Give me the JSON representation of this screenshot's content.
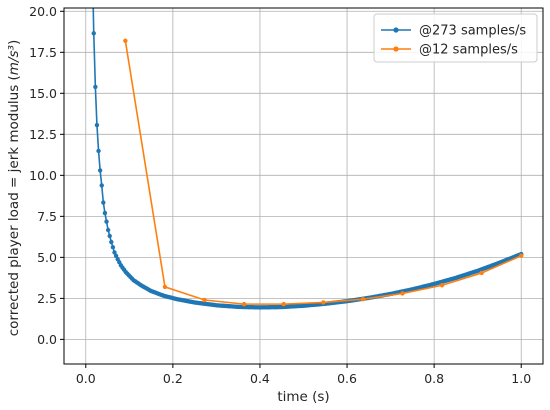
{
  "chart_data": {
    "type": "line",
    "xlabel": "time (s)",
    "ylabel": "corrected player load = jerk modulus (m/s³)",
    "xlim": [
      -0.05,
      1.05
    ],
    "ylim": [
      -1.5,
      20.2
    ],
    "grid": true,
    "legend_position": "top-right",
    "x_ticks": [
      "0.0",
      "0.2",
      "0.4",
      "0.6",
      "0.8",
      "1.0"
    ],
    "y_ticks": [
      "0.0",
      "2.5",
      "5.0",
      "7.5",
      "10.0",
      "12.5",
      "15.0",
      "17.5",
      "20.0"
    ],
    "series": [
      {
        "name": "@273 samples/s",
        "color": "#1f77b4",
        "x_start": 0.0037,
        "x_end": 1.0,
        "n_points": 273,
        "values": [
          [
            0.0183,
            18.7
          ],
          [
            0.022,
            15.4
          ],
          [
            0.0256,
            13.1
          ],
          [
            0.0293,
            11.5
          ],
          [
            0.033,
            10.3
          ],
          [
            0.037,
            9.3
          ],
          [
            0.04,
            8.4
          ],
          [
            0.044,
            7.7
          ],
          [
            0.051,
            6.7
          ],
          [
            0.059,
            5.9
          ],
          [
            0.066,
            5.3
          ],
          [
            0.073,
            4.9
          ],
          [
            0.081,
            4.5
          ],
          [
            0.092,
            4.1
          ],
          [
            0.11,
            3.6
          ],
          [
            0.13,
            3.25
          ],
          [
            0.15,
            2.95
          ],
          [
            0.18,
            2.65
          ],
          [
            0.21,
            2.45
          ],
          [
            0.25,
            2.25
          ],
          [
            0.3,
            2.08
          ],
          [
            0.35,
            1.98
          ],
          [
            0.4,
            1.95
          ],
          [
            0.45,
            1.97
          ],
          [
            0.5,
            2.05
          ],
          [
            0.55,
            2.17
          ],
          [
            0.6,
            2.33
          ],
          [
            0.65,
            2.53
          ],
          [
            0.7,
            2.77
          ],
          [
            0.75,
            3.05
          ],
          [
            0.8,
            3.38
          ],
          [
            0.85,
            3.75
          ],
          [
            0.9,
            4.18
          ],
          [
            0.95,
            4.67
          ],
          [
            1.0,
            5.2
          ]
        ]
      },
      {
        "name": "@12 samples/s",
        "color": "#ff7f0e",
        "values": [
          [
            0.0909,
            18.2
          ],
          [
            0.1818,
            3.2
          ],
          [
            0.2727,
            2.4
          ],
          [
            0.3636,
            2.15
          ],
          [
            0.4545,
            2.15
          ],
          [
            0.5455,
            2.25
          ],
          [
            0.6364,
            2.45
          ],
          [
            0.7273,
            2.8
          ],
          [
            0.8182,
            3.3
          ],
          [
            0.9091,
            4.05
          ],
          [
            1.0,
            5.1
          ]
        ]
      }
    ]
  }
}
